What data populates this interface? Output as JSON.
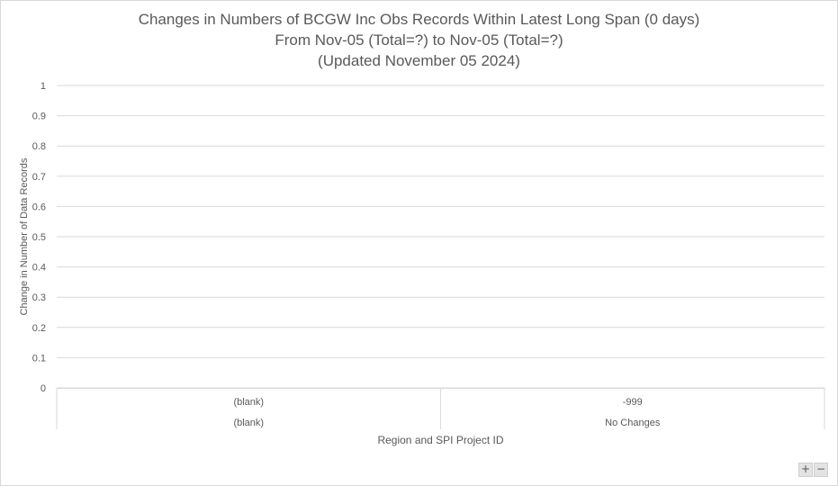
{
  "chart_data": {
    "type": "bar",
    "title_lines": [
      "Changes in Numbers of BCGW Inc Obs Records Within Latest Long Span (0 days)",
      "From Nov-05 (Total=?) to Nov-05 (Total=?)",
      "(Updated November 05 2024)"
    ],
    "xlabel": "Region and SPI Project ID",
    "ylabel": "Change in Number of Data Records",
    "ylim": [
      0,
      1
    ],
    "yticks": [
      "0",
      "0.1",
      "0.2",
      "0.3",
      "0.4",
      "0.5",
      "0.6",
      "0.7",
      "0.8",
      "0.9",
      "1"
    ],
    "category_groups": [
      {
        "group": "(blank)",
        "category": "(blank)"
      },
      {
        "group": "No Changes",
        "category": "-999"
      }
    ],
    "series": [
      {
        "values": [
          null,
          null
        ]
      }
    ],
    "grid": true,
    "legend": "none"
  },
  "controls": {
    "zoom_in_label": "+",
    "zoom_out_label": "−"
  }
}
